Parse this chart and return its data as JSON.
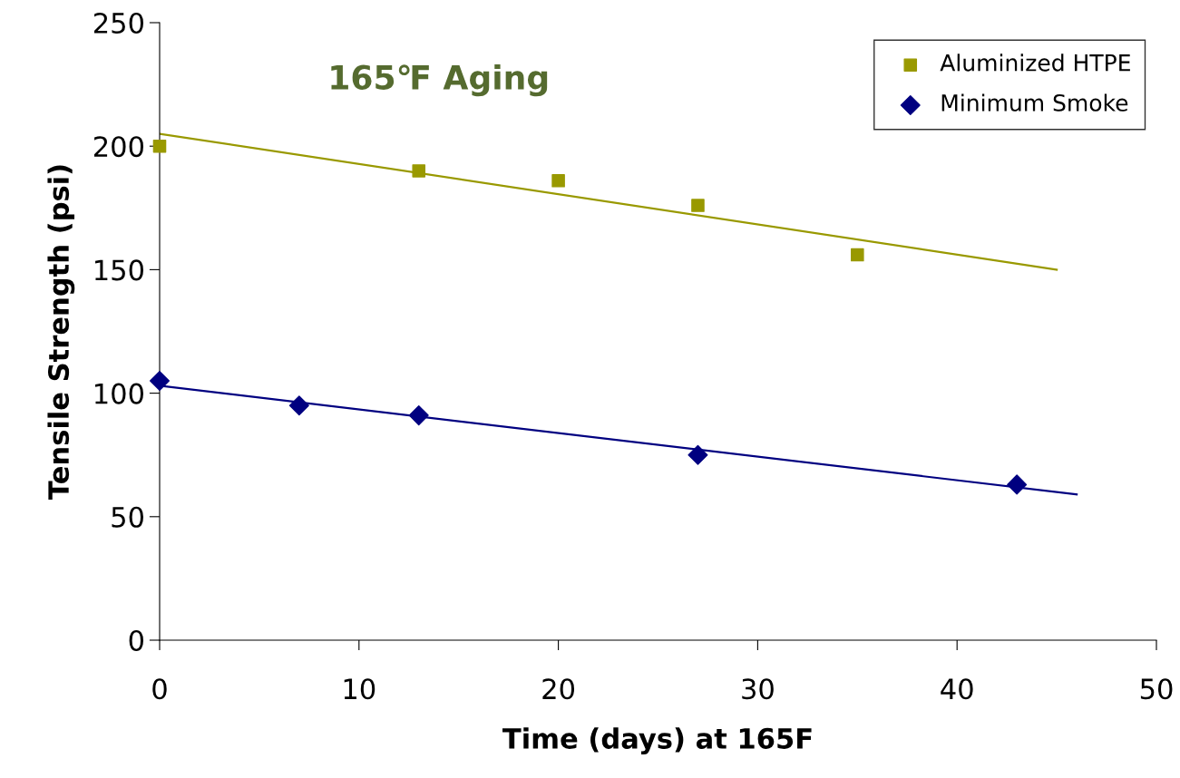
{
  "chart_data": {
    "type": "scatter",
    "title": "165℉ Aging",
    "xlabel": "Time (days) at 165F",
    "ylabel": "Tensile Strength (psi)",
    "xlim": [
      0,
      50
    ],
    "xticks": [
      0,
      10,
      20,
      30,
      40,
      50
    ],
    "ylim": [
      0,
      250
    ],
    "yticks": [
      0,
      50,
      100,
      150,
      200,
      250
    ],
    "grid": false,
    "legend": "top right",
    "series": [
      {
        "name": "Aluminized HTPE",
        "color": "#999900",
        "marker": "square",
        "x": [
          0,
          13,
          20,
          27,
          35
        ],
        "values": [
          200,
          190,
          186,
          176,
          156
        ]
      },
      {
        "name": "Minimum Smoke",
        "color": "#000080",
        "marker": "diamond",
        "x": [
          0,
          7,
          13,
          27,
          43
        ],
        "values": [
          105,
          95,
          91,
          75,
          63
        ]
      },
      {
        "type": "line",
        "color": "#999900",
        "marker": "none",
        "line_style": "solid",
        "x": [
          0,
          45
        ],
        "values": [
          205,
          150
        ]
      },
      {
        "type": "line",
        "color": "#000080",
        "marker": "none",
        "line_style": "solid",
        "x": [
          0,
          46
        ],
        "values": [
          103,
          59
        ]
      }
    ]
  }
}
